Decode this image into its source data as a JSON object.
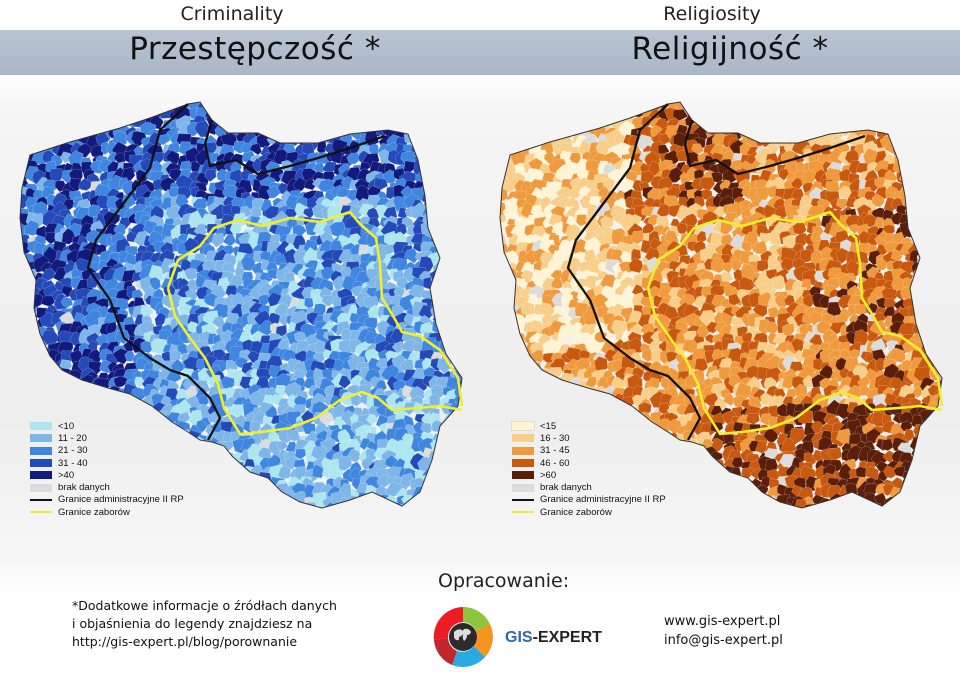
{
  "left": {
    "title_en": "Criminality",
    "title_pl": "Przestępczość *",
    "palette": [
      "#aee6f0",
      "#7fb6e8",
      "#3f86e0",
      "#2449b8",
      "#121a7e"
    ],
    "legend": [
      "<10",
      "11 - 20",
      "21 - 30",
      "31 - 40",
      ">40",
      "brak danych",
      "Granice administracyjne II RP",
      "Granice zaborów"
    ]
  },
  "right": {
    "title_en": "Religiosity",
    "title_pl": "Religijność *",
    "palette": [
      "#fff4d6",
      "#f8cf8a",
      "#ef9a3c",
      "#c9590f",
      "#5a1e0a"
    ],
    "legend": [
      "<15",
      "16 - 30",
      "31 - 45",
      "46 - 60",
      ">60",
      "brak danych",
      "Granice administracyjne II RP",
      "Granice zaborów"
    ]
  },
  "no_data_color": "#dcdcdc",
  "admin_border_color": "#111111",
  "partition_border_color": "#f2ee2a",
  "footnote": {
    "line1": "*Dodatkowe informacje o źródłach danych",
    "line2": "i objaśnienia do legendy znajdziesz na",
    "line3": "http://gis-expert.pl/blog/porownanie"
  },
  "author_label": "Opracowanie:",
  "brand": {
    "part1": "GIS",
    "part2": "-EXPERT"
  },
  "logo_icon": "globe-logo-icon",
  "contact": {
    "website": "www.gis-expert.pl",
    "email": "info@gis-expert.pl"
  }
}
